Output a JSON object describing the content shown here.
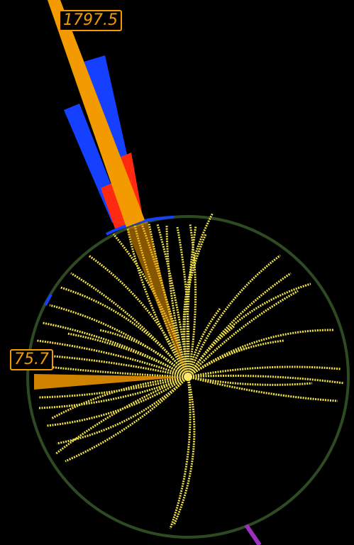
{
  "jet_labels": [
    {
      "id": "jet-1",
      "text": "1797.5"
    },
    {
      "id": "jet-2",
      "text": "75.7"
    }
  ],
  "colors": {
    "background": "#000000",
    "detector_ring": "#2e4a22",
    "tracks": "#f2e24a",
    "jet": "#f39a00",
    "em_deposit": "#ff2a10",
    "had_deposit": "#1540ff",
    "muon": "#9b30c0"
  }
}
